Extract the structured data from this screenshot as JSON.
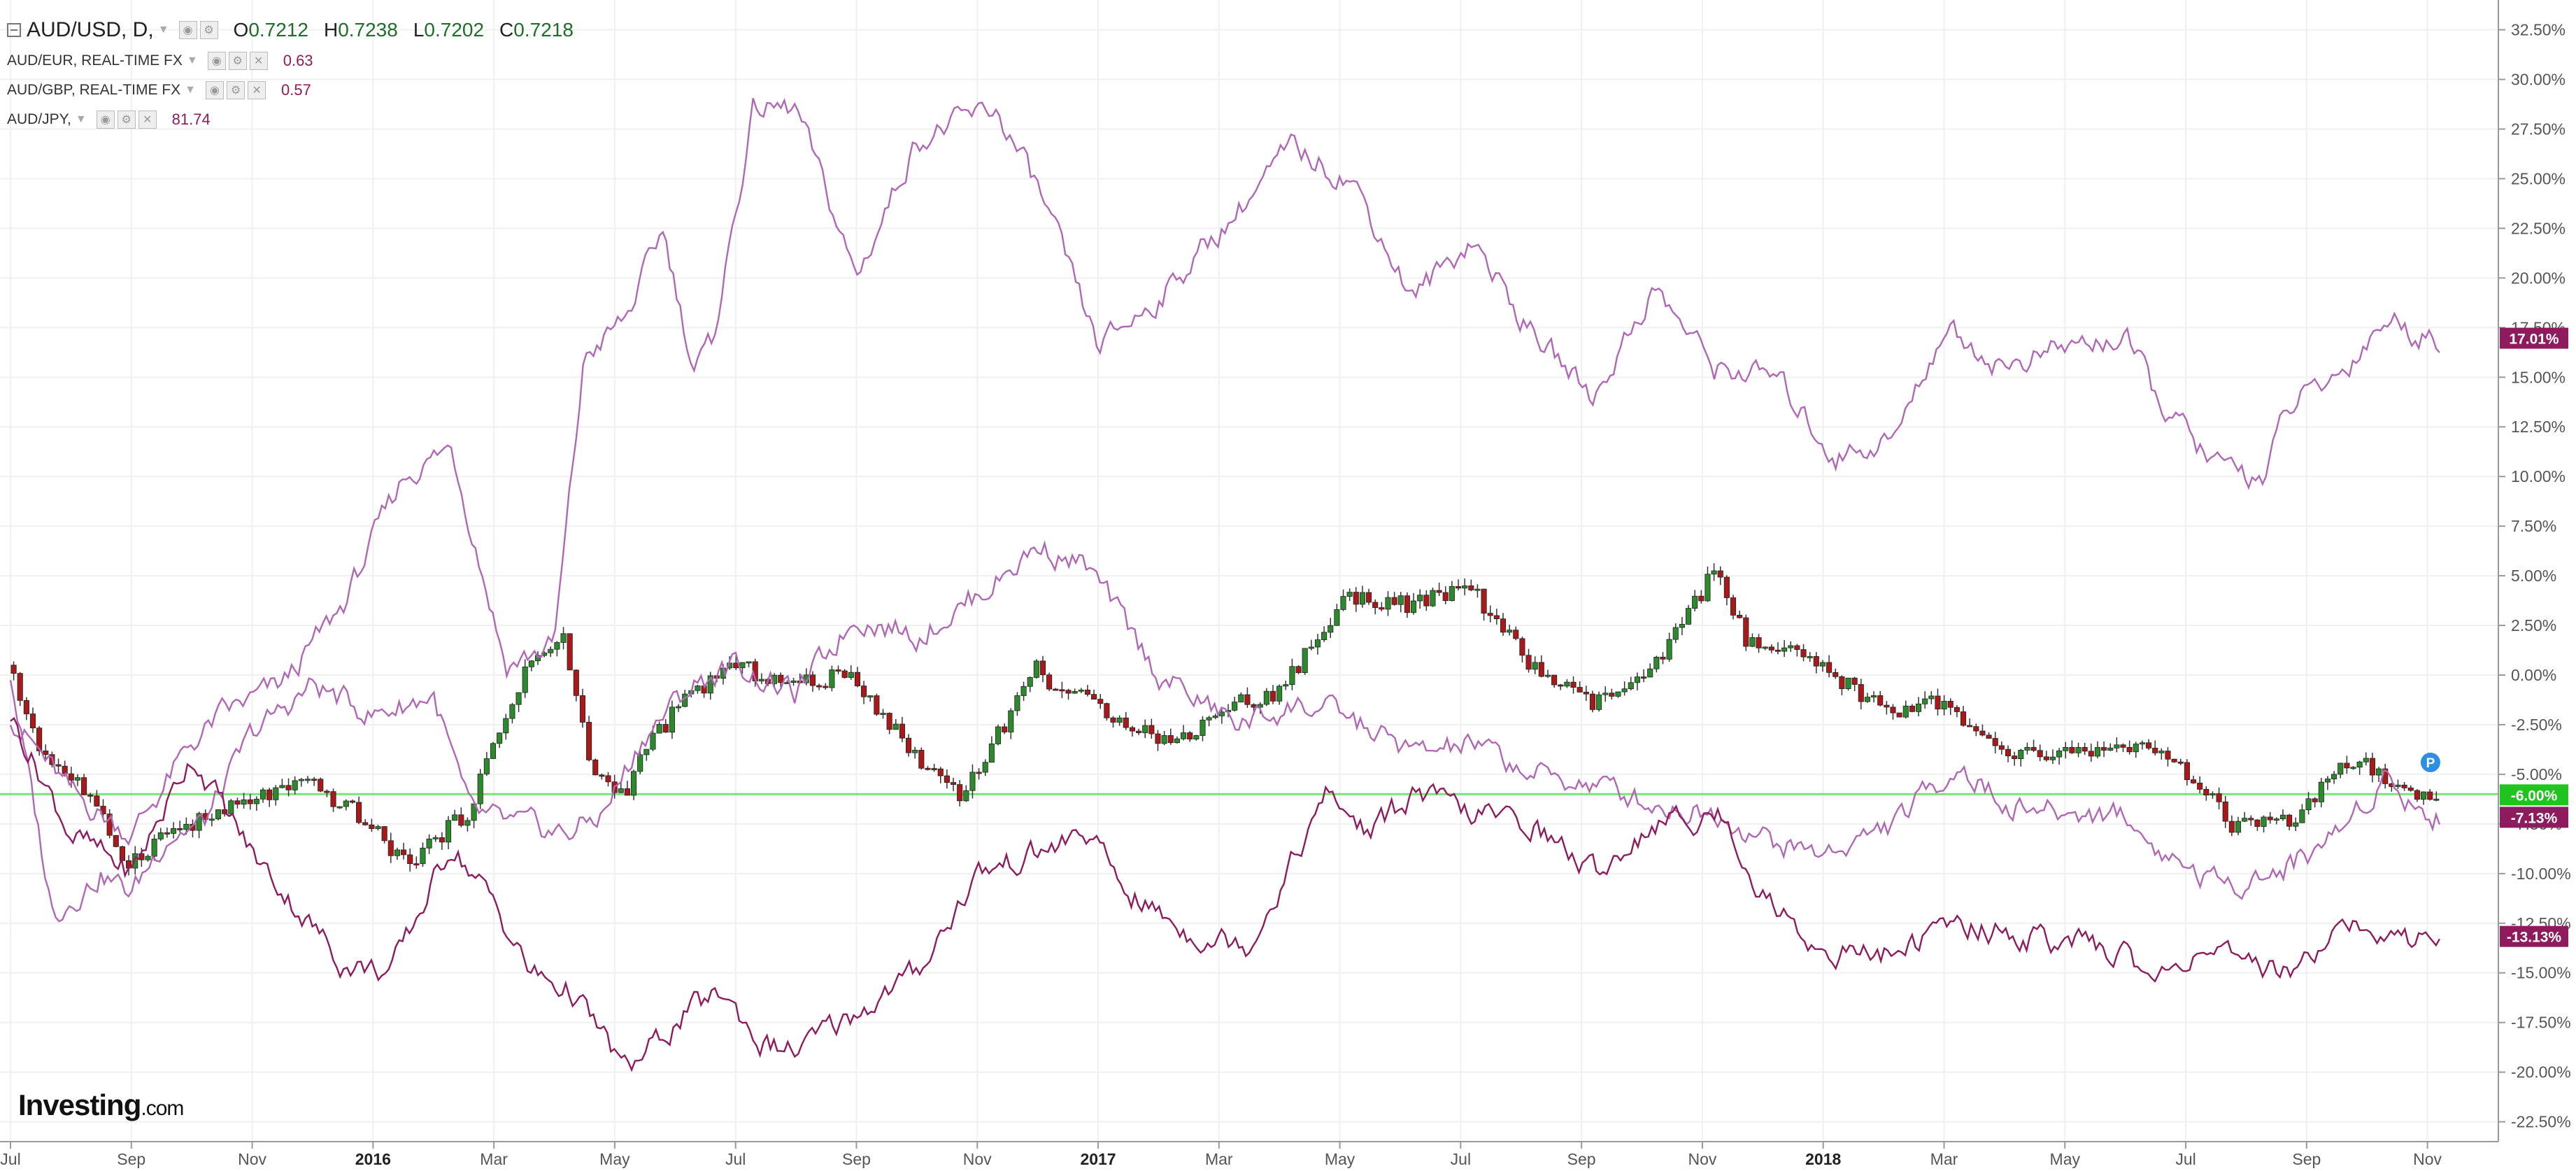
{
  "legend": {
    "main": {
      "symbol": "AUD/USD, D,",
      "open_label": "O",
      "open": "0.7212",
      "high_label": "H",
      "high": "0.7238",
      "low_label": "L",
      "low": "0.7202",
      "close_label": "C",
      "close": "0.7218"
    },
    "overlays": [
      {
        "name": "AUD/EUR, REAL-TIME FX",
        "value": "0.63",
        "color": "#8e1b5e"
      },
      {
        "name": "AUD/GBP, REAL-TIME FX",
        "value": "0.57",
        "color": "#8e1b5e"
      },
      {
        "name": "AUD/JPY,",
        "value": "81.74",
        "color": "#8e1b5e"
      }
    ]
  },
  "logo": {
    "brand": "Investing",
    "suffix": ".com"
  },
  "chart_data": {
    "type": "line",
    "scale": "percent-change",
    "ylim": [
      -23.5,
      34
    ],
    "y_ticks": [
      "32.50%",
      "30.00%",
      "27.50%",
      "25.00%",
      "22.50%",
      "20.00%",
      "17.50%",
      "15.00%",
      "12.50%",
      "10.00%",
      "7.50%",
      "5.00%",
      "2.50%",
      "0.00%",
      "-2.50%",
      "-5.00%",
      "-7.50%",
      "-10.00%",
      "-12.50%",
      "-15.00%",
      "-17.50%",
      "-20.00%",
      "-22.50%"
    ],
    "x_ticks": [
      "Jul",
      "Sep",
      "Nov",
      "2016",
      "Mar",
      "May",
      "Jul",
      "Sep",
      "Nov",
      "2017",
      "Mar",
      "May",
      "Jul",
      "Sep",
      "Nov",
      "2018",
      "Mar",
      "May",
      "Jul",
      "Sep",
      "Nov"
    ],
    "x_tick_bold": [
      false,
      false,
      false,
      true,
      false,
      false,
      false,
      false,
      false,
      true,
      false,
      false,
      false,
      false,
      false,
      true,
      false,
      false,
      false,
      false,
      false
    ],
    "x_range_months": [
      0,
      41
    ],
    "grid": true,
    "reference_line": {
      "value": -6.0,
      "color": "#7be27b"
    },
    "series": [
      {
        "name": "AUD/USD",
        "style": "candles",
        "up_color": "#2c8a2c",
        "down_color": "#a81a1a",
        "x": [
          0,
          0.6,
          1.2,
          2,
          2.6,
          3.5,
          4.3,
          5,
          5.8,
          6.6,
          7.6,
          8.6,
          9.2,
          9.7,
          10.2,
          10.6,
          11.3,
          12,
          13,
          14,
          15,
          15.8,
          16.5,
          17,
          17.3,
          18,
          19.3,
          20.2,
          21,
          22.2,
          23.3,
          24.2,
          25.2,
          26.2,
          27.2,
          28.3,
          28.8,
          29.6,
          30.2,
          31.2,
          31.8,
          33,
          34,
          35.2,
          36.1,
          36.8,
          37.8,
          38.5,
          39,
          39.6,
          40
        ],
        "y": [
          0.5,
          -4.0,
          -5.5,
          -9.5,
          -8.0,
          -7.0,
          -6.0,
          -5.5,
          -7.0,
          -9.5,
          -7.0,
          0.5,
          1.8,
          -5.0,
          -6.0,
          -3.5,
          -1.0,
          0.5,
          -0.5,
          0.0,
          -4.0,
          -6.0,
          -2.5,
          0.5,
          -0.5,
          -1.5,
          -3.5,
          -1.5,
          -1.0,
          4.0,
          3.5,
          4.5,
          0.5,
          -1.5,
          0.0,
          5.5,
          1.5,
          1.0,
          0.0,
          -2.0,
          -1.0,
          -4.0,
          -4.0,
          -3.5,
          -5.0,
          -7.5,
          -7.5,
          -5.0,
          -4.5,
          -6.0,
          -6.0
        ],
        "value_label": "-6.00%",
        "label_color": "#1fc41f"
      },
      {
        "name": "AUD/EUR",
        "style": "line",
        "color": "#b067b6",
        "x": [
          0,
          1,
          2,
          3,
          3.5,
          4.5,
          5.5,
          6.5,
          7.3,
          8.2,
          9,
          9.5,
          10.2,
          10.8,
          11.3,
          11.6,
          12.3,
          13,
          14,
          15,
          16.3,
          17,
          18,
          19,
          20.2,
          21.2,
          22.2,
          23.2,
          24.2,
          25.1,
          26.2,
          27.2,
          28.2,
          29.2,
          30.2,
          31.2,
          32,
          33,
          34,
          35,
          35.5,
          36.5,
          37.3,
          37.7,
          38.5,
          39.3,
          40
        ],
        "y": [
          -2.0,
          -6.0,
          -8.0,
          -3.5,
          -2.0,
          -0.5,
          3.5,
          10.0,
          11.5,
          0.5,
          1.5,
          16.0,
          18.0,
          22.5,
          15.5,
          16.5,
          28.5,
          28.5,
          20.0,
          27.0,
          28.5,
          24.5,
          16.5,
          19.0,
          23.0,
          26.5,
          25.0,
          19.0,
          22.0,
          17.5,
          14.0,
          19.5,
          15.5,
          15.0,
          11.0,
          12.0,
          17.5,
          15.5,
          16.5,
          17.0,
          14.0,
          10.5,
          10.0,
          13.5,
          15.0,
          18.0,
          17.0
        ],
        "value_label": "17.01%",
        "label_color": "#8e1b5e"
      },
      {
        "name": "AUD/GBP",
        "style": "line",
        "color": "#b067b6",
        "x": [
          0,
          0.7,
          1.5,
          2,
          2.6,
          3.2,
          4,
          5,
          6,
          7,
          7.6,
          8.2,
          9.2,
          9.8,
          10.5,
          11.3,
          12,
          13,
          14,
          15,
          16,
          17,
          17.8,
          19,
          20.3,
          21.3,
          22,
          23.3,
          24.2,
          25.2,
          26.2,
          27.2,
          28.3,
          29.2,
          30,
          31.2,
          32.2,
          33,
          34,
          35,
          35.4,
          36.5,
          37.5,
          38.5,
          39.3,
          40
        ],
        "y": [
          0.0,
          -12.0,
          -10.0,
          -11.0,
          -8.0,
          -7.5,
          -3.0,
          -0.5,
          -2.0,
          -1.0,
          -7.0,
          -7.5,
          -8.0,
          -7.0,
          -3.0,
          -0.5,
          0.5,
          -1.0,
          3.0,
          2.0,
          4.0,
          6.5,
          5.5,
          0.0,
          -2.5,
          -1.5,
          -2.0,
          -4.0,
          -3.5,
          -5.0,
          -5.5,
          -6.5,
          -7.0,
          -8.5,
          -9.0,
          -7.5,
          -4.5,
          -6.5,
          -7.0,
          -7.0,
          -8.5,
          -10.5,
          -10.0,
          -8.0,
          -5.0,
          -7.13
        ],
        "value_label": "-7.13%",
        "label_color": "#8e1b5e"
      },
      {
        "name": "AUD/JPY",
        "style": "line",
        "color": "#8e1b5e",
        "x": [
          0,
          1,
          2,
          3,
          4,
          5.5,
          6.3,
          7.3,
          8,
          8.6,
          9.3,
          10.2,
          11.2,
          11.8,
          12.4,
          13,
          14,
          15,
          16,
          17,
          17.8,
          18.5,
          19.5,
          20.5,
          21.8,
          22.5,
          23.2,
          24.2,
          25.2,
          26.2,
          27.2,
          28.3,
          29,
          30,
          31.2,
          32.2,
          33,
          34,
          35,
          35.5,
          36.3,
          37,
          38,
          38.5,
          39.3,
          40
        ],
        "y": [
          -2.0,
          -8.0,
          -10.0,
          -4.0,
          -9.0,
          -14.5,
          -15.0,
          -8.5,
          -11.5,
          -15.0,
          -16.0,
          -20.0,
          -17.0,
          -16.0,
          -18.5,
          -19.0,
          -17.0,
          -15.0,
          -10.0,
          -9.0,
          -8.0,
          -11.0,
          -13.0,
          -13.5,
          -6.0,
          -8.0,
          -6.0,
          -7.0,
          -7.5,
          -10.0,
          -7.5,
          -7.0,
          -11.0,
          -14.0,
          -14.0,
          -12.5,
          -13.0,
          -13.5,
          -14.0,
          -15.5,
          -13.5,
          -15.0,
          -14.5,
          -12.0,
          -13.5,
          -13.13
        ],
        "value_label": "-13.13%",
        "label_color": "#8e1b5e"
      }
    ],
    "marker": {
      "label": "P",
      "color": "#2d8fe0"
    }
  }
}
